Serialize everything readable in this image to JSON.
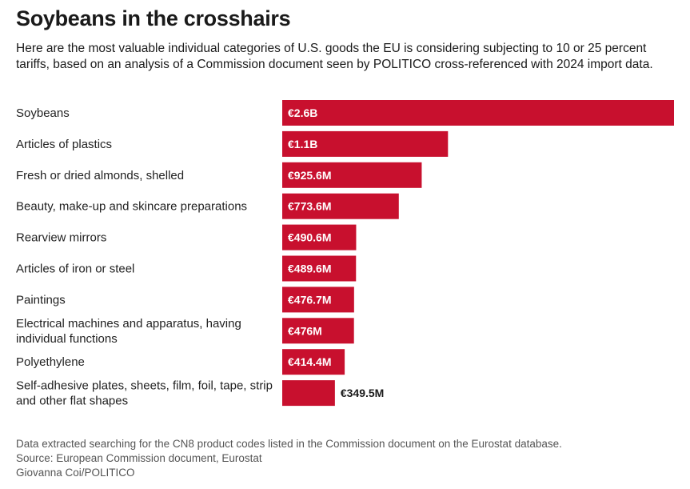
{
  "colors": {
    "bar": "#c8102e",
    "text": "#1a1a1a",
    "footer": "#555555"
  },
  "chart_data": {
    "type": "bar",
    "orientation": "horizontal",
    "title": "Soybeans in the crosshairs",
    "subtitle": "Here are the most valuable individual categories of U.S. goods the EU is considering subjecting to 10 or 25 percent tariffs, based on an analysis of a Commission document seen by POLITICO cross-referenced with 2024 import data.",
    "unit": "EUR million",
    "categories": [
      [
        "Soybeans"
      ],
      [
        "Articles of plastics"
      ],
      [
        "Fresh or dried almonds, shelled"
      ],
      [
        "Beauty, make-up and skincare preparations"
      ],
      [
        "Rearview mirrors"
      ],
      [
        "Articles of iron or steel"
      ],
      [
        "Paintings"
      ],
      [
        "Electrical machines and apparatus, having",
        "individual functions"
      ],
      [
        "Polyethylene"
      ],
      [
        "Self-adhesive plates, sheets, film, foil, tape, strip",
        "and other flat shapes"
      ]
    ],
    "values": [
      2600,
      1100,
      925.6,
      773.6,
      490.6,
      489.6,
      476.7,
      476,
      414.4,
      349.5
    ],
    "value_labels": [
      "€2.6B",
      "€1.1B",
      "€925.6M",
      "€773.6M",
      "€490.6M",
      "€489.6M",
      "€476.7M",
      "€476M",
      "€414.4M",
      "€349.5M"
    ],
    "grid": false,
    "legend": "none"
  },
  "footer": {
    "note": "Data extracted searching for the CN8 product codes listed in the Commission document on the Eurostat database.",
    "source": "Source: European Commission document, Eurostat",
    "credit": "Giovanna Coi/POLITICO"
  }
}
